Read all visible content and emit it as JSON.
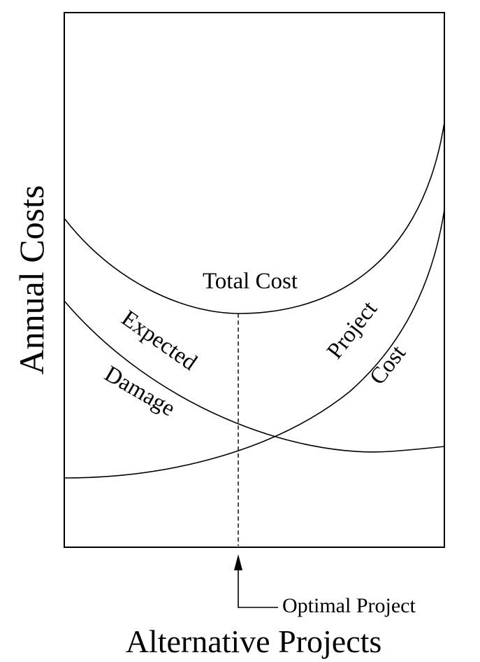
{
  "axes": {
    "y_label": "Annual Costs",
    "x_label": "Alternative Projects"
  },
  "curves": {
    "total": "Total Cost",
    "damage": [
      "Expected",
      "Damage"
    ],
    "project": [
      "Project",
      "Cost"
    ]
  },
  "annotation": "Optimal Project"
}
